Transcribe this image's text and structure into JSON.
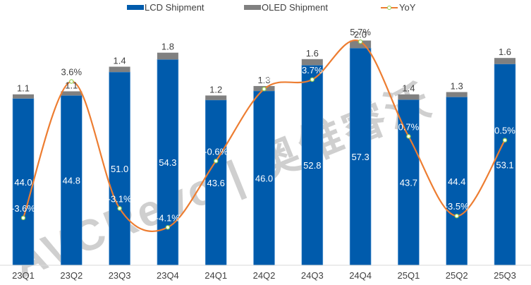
{
  "chart_data": {
    "type": "bar",
    "stacked": true,
    "title": "",
    "xlabel": "",
    "ylabel": "",
    "categories": [
      "23Q1",
      "23Q2",
      "23Q3",
      "23Q4",
      "24Q1",
      "24Q2",
      "24Q3",
      "24Q4",
      "25Q1",
      "25Q2",
      "25Q3"
    ],
    "series": [
      {
        "name": "LCD Shipment",
        "type": "bar",
        "color": "#005BAC",
        "values": [
          44.0,
          44.8,
          51.0,
          54.3,
          43.6,
          46.0,
          52.8,
          57.3,
          43.7,
          44.4,
          53.1
        ],
        "labels": [
          "44.0",
          "44.8",
          "51.0",
          "54.3",
          "43.6",
          "46.0",
          "52.8",
          "57.3",
          "43.7",
          "44.4",
          "53.1"
        ]
      },
      {
        "name": "OLED Shipment",
        "type": "bar",
        "color": "#808080",
        "values": [
          1.1,
          1.1,
          1.4,
          1.8,
          1.2,
          1.3,
          1.6,
          2.0,
          1.4,
          1.3,
          1.6
        ],
        "labels": [
          "1.1",
          "1.1",
          "1.4",
          "1.8",
          "1.2",
          "1.3",
          "1.6",
          "2.0",
          "1.4",
          "1.3",
          "1.6"
        ]
      },
      {
        "name": "YoY",
        "type": "line",
        "color": "#ED7D31",
        "marker_color": "#92D050",
        "axis": "secondary",
        "values": [
          -3.6,
          3.6,
          -3.1,
          -4.1,
          -0.6,
          3.2,
          3.7,
          5.7,
          0.7,
          -3.5,
          0.5
        ],
        "labels": [
          "-3.6%",
          "3.6%",
          "-3.1%",
          "-4.1%",
          "-0.6%",
          "3.2%",
          "3.7%",
          "5.7%",
          "0.7%",
          "-3.5%",
          "0.5%"
        ]
      }
    ],
    "ylim": [
      0,
      70
    ],
    "y2lim": [
      -6.1,
      7.9
    ],
    "grid": false,
    "legend": "top-center",
    "watermark": "AVCRevo | 奥维睿沃"
  },
  "legend": {
    "lcd": "LCD Shipment",
    "oled": "OLED Shipment",
    "yoy": "YoY"
  }
}
